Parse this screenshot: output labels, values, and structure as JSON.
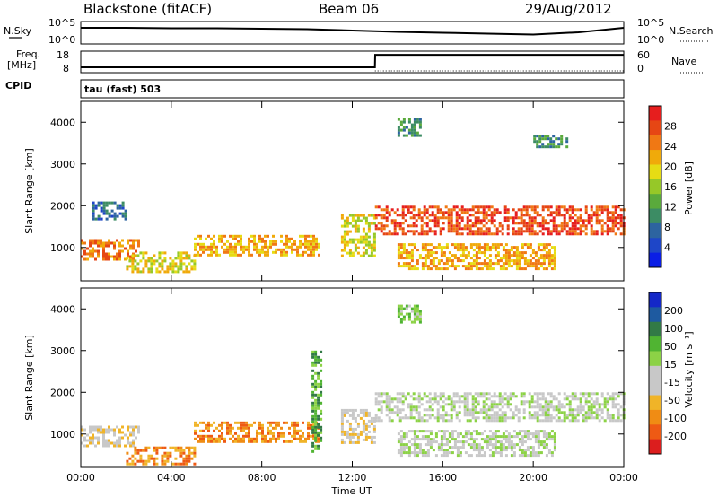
{
  "header": {
    "station": "Blackstone (fitACF)",
    "beam": "Beam 06",
    "date": "29/Aug/2012"
  },
  "meta_panels": {
    "nsky_label": "N.Sky",
    "nsearch_label": "N.Search",
    "freq_label": "Freq.",
    "freq_unit": "[MHz]",
    "nave_label": "Nave",
    "cpid_label": "CPID",
    "cpid_value": "tau (fast) 503",
    "noise_ticks_left": [
      "10^5",
      "10^0"
    ],
    "noise_ticks_right": [
      "10^5",
      "10^0"
    ],
    "freq_ticks": [
      "18",
      "8"
    ],
    "nave_ticks": [
      "60",
      "0"
    ]
  },
  "colors": {
    "power": [
      "#0a1ee6",
      "#1e46c8",
      "#2d64a0",
      "#3c8c64",
      "#5aaa3c",
      "#96c828",
      "#e6dc14",
      "#f0aa0a",
      "#f07814",
      "#e64614",
      "#e61e1e"
    ],
    "velocity": [
      "#dc1e1e",
      "#ee5a14",
      "#f08c14",
      "#f0b428",
      "#c8c8c8",
      "#c8c8c8",
      "#8cd246",
      "#50b432",
      "#327a46",
      "#1e5aa0",
      "#1428c8"
    ]
  },
  "chart_data": [
    {
      "type": "line",
      "name": "noise",
      "xlabel": "",
      "ylabel": "",
      "x": [
        0,
        2,
        4,
        6,
        8,
        10,
        12,
        14,
        16,
        18,
        20,
        22,
        24
      ],
      "series": [
        {
          "name": "N.Sky",
          "values": [
            3.6,
            3.6,
            3.5,
            3.5,
            3.4,
            3.3,
            3.0,
            2.7,
            2.5,
            2.3,
            2.1,
            2.6,
            3.6
          ]
        }
      ]
    },
    {
      "type": "line",
      "name": "frequency",
      "x": [
        0,
        13.0,
        13.01,
        24
      ],
      "series": [
        {
          "name": "Freq.",
          "values": [
            10.5,
            10.5,
            16.3,
            16.3
          ]
        }
      ],
      "ylim": [
        8,
        18
      ]
    },
    {
      "type": "heatmap",
      "name": "power",
      "ylabel": "Slant Range [km]",
      "xlabel": "Time UT",
      "xlim": [
        0,
        24
      ],
      "ylim": [
        200,
        4500
      ],
      "xticks": [
        "00:00",
        "04:00",
        "08:00",
        "12:00",
        "16:00",
        "20:00",
        "00:00"
      ],
      "yticks": [
        "1000",
        "2000",
        "3000",
        "4000"
      ],
      "colorbar_label": "Power [dB]",
      "colorbar_ticks": [
        "4",
        "8",
        "12",
        "16",
        "20",
        "24",
        "28"
      ],
      "bands": [
        {
          "t0": 0,
          "t1": 2.5,
          "r0": 700,
          "r1": 1200,
          "level": 8
        },
        {
          "t0": 2,
          "t1": 5,
          "r0": 400,
          "r1": 900,
          "level": 6
        },
        {
          "t0": 5,
          "t1": 10.5,
          "r0": 800,
          "r1": 1300,
          "level": 7
        },
        {
          "t0": 11.5,
          "t1": 13,
          "r0": 800,
          "r1": 1800,
          "level": 6
        },
        {
          "t0": 13,
          "t1": 24,
          "r0": 1300,
          "r1": 2000,
          "level": 9
        },
        {
          "t0": 14,
          "t1": 21,
          "r0": 500,
          "r1": 1100,
          "level": 7
        },
        {
          "t0": 0.5,
          "t1": 2,
          "r0": 1700,
          "r1": 2100,
          "level": 2
        },
        {
          "t0": 14,
          "t1": 15,
          "r0": 3700,
          "r1": 4100,
          "level": 3
        },
        {
          "t0": 20,
          "t1": 21.5,
          "r0": 3400,
          "r1": 3700,
          "level": 3
        }
      ]
    },
    {
      "type": "heatmap",
      "name": "velocity",
      "ylabel": "Slant Range [km]",
      "xlabel": "Time UT",
      "xlim": [
        0,
        24
      ],
      "ylim": [
        200,
        4500
      ],
      "xticks": [
        "00:00",
        "04:00",
        "08:00",
        "12:00",
        "16:00",
        "20:00",
        "00:00"
      ],
      "yticks": [
        "1000",
        "2000",
        "3000",
        "4000"
      ],
      "colorbar_label": "Velocity [m s⁻¹]",
      "colorbar_ticks": [
        "200",
        "100",
        "50",
        "15",
        "-15",
        "-50",
        "-100",
        "-200"
      ],
      "bands": [
        {
          "t0": 0,
          "t1": 2.5,
          "r0": 700,
          "r1": 1200,
          "level": 4
        },
        {
          "t0": 2,
          "t1": 5,
          "r0": 300,
          "r1": 700,
          "level": 2
        },
        {
          "t0": 5,
          "t1": 10.5,
          "r0": 800,
          "r1": 1300,
          "level": 2
        },
        {
          "t0": 11.5,
          "t1": 13,
          "r0": 800,
          "r1": 1600,
          "level": 4
        },
        {
          "t0": 13,
          "t1": 24,
          "r0": 1300,
          "r1": 2000,
          "level": 5
        },
        {
          "t0": 14,
          "t1": 21,
          "r0": 500,
          "r1": 1100,
          "level": 5
        },
        {
          "t0": 10.2,
          "t1": 10.6,
          "r0": 600,
          "r1": 3000,
          "level": 7
        },
        {
          "t0": 14,
          "t1": 15,
          "r0": 3700,
          "r1": 4100,
          "level": 6
        }
      ]
    }
  ],
  "bottom_axis_label": "Time UT"
}
